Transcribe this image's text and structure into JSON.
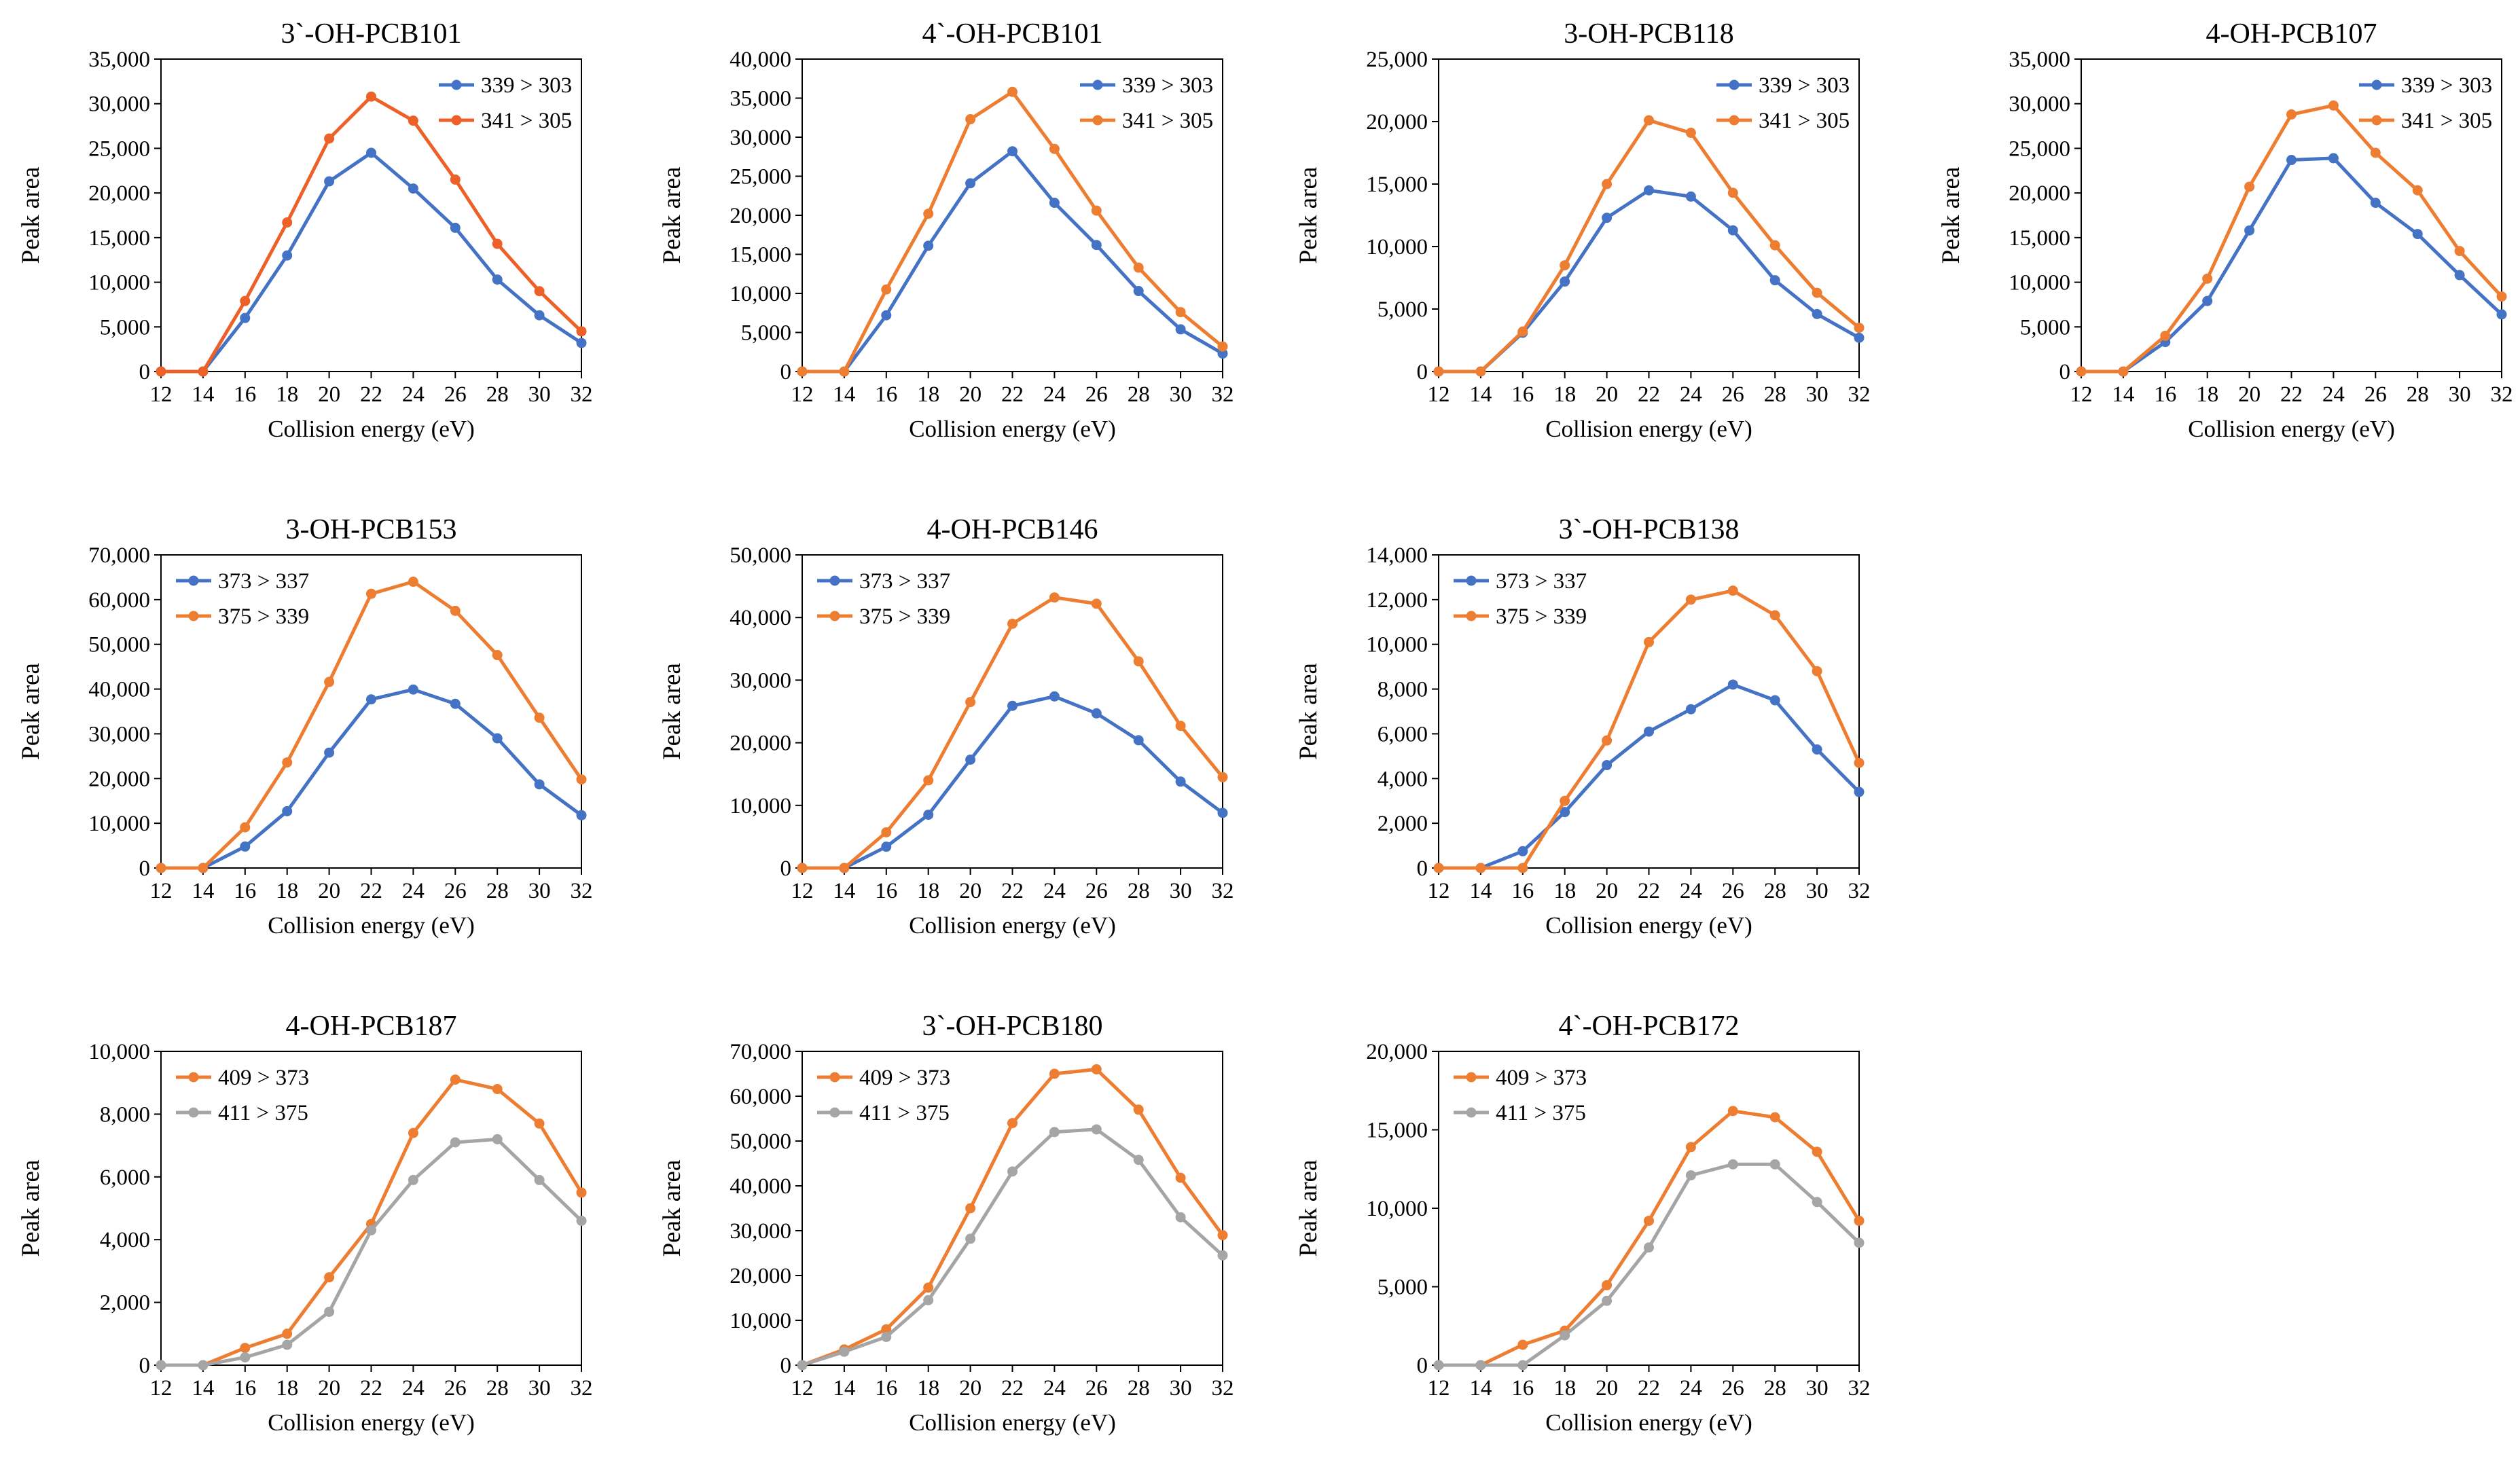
{
  "figure": {
    "chart_count": 10
  },
  "charts": [
    {
      "type": "line",
      "title": "3`-OH-PCB101",
      "xlabel": "Collision energy (eV)",
      "ylabel": "Peak area",
      "x": [
        12,
        14,
        16,
        18,
        20,
        22,
        24,
        26,
        28,
        30,
        32
      ],
      "ylim": [
        0,
        35000
      ],
      "yticks": [
        0,
        5000,
        10000,
        15000,
        20000,
        25000,
        30000,
        35000
      ],
      "ytick_labels": [
        "0",
        "5,000",
        "10,000",
        "15,000",
        "20,000",
        "25,000",
        "30,000",
        "35,000"
      ],
      "legend_position": "top-right",
      "series": [
        {
          "name": "339 > 303",
          "color": "#4472C4",
          "values": [
            0,
            0,
            6000,
            13000,
            21300,
            24500,
            20500,
            16100,
            10300,
            6300,
            3200
          ]
        },
        {
          "name": "341 > 305",
          "color": "#ED6128",
          "values": [
            0,
            0,
            7900,
            16700,
            26100,
            30800,
            28100,
            21500,
            14300,
            9000,
            4500
          ]
        }
      ]
    },
    {
      "type": "line",
      "title": "4`-OH-PCB101",
      "xlabel": "Collision energy (eV)",
      "ylabel": "Peak area",
      "x": [
        12,
        14,
        16,
        18,
        20,
        22,
        24,
        26,
        28,
        30,
        32
      ],
      "ylim": [
        0,
        40000
      ],
      "yticks": [
        0,
        5000,
        10000,
        15000,
        20000,
        25000,
        30000,
        35000,
        40000
      ],
      "ytick_labels": [
        "0",
        "5,000",
        "10,000",
        "15,000",
        "20,000",
        "25,000",
        "30,000",
        "35,000",
        "40,000"
      ],
      "legend_position": "top-right",
      "series": [
        {
          "name": "339 > 303",
          "color": "#4472C4",
          "values": [
            0,
            0,
            7200,
            16100,
            24100,
            28200,
            21600,
            16200,
            10300,
            5400,
            2300
          ]
        },
        {
          "name": "341 > 305",
          "color": "#ED7D31",
          "values": [
            0,
            0,
            10500,
            20200,
            32300,
            35800,
            28500,
            20600,
            13300,
            7600,
            3200
          ]
        }
      ]
    },
    {
      "type": "line",
      "title": "3-OH-PCB118",
      "xlabel": "Collision energy (eV)",
      "ylabel": "Peak area",
      "x": [
        12,
        14,
        16,
        18,
        20,
        22,
        24,
        26,
        28,
        30,
        32
      ],
      "ylim": [
        0,
        25000
      ],
      "yticks": [
        0,
        5000,
        10000,
        15000,
        20000,
        25000
      ],
      "ytick_labels": [
        "0",
        "5,000",
        "10,000",
        "15,000",
        "20,000",
        "25,000"
      ],
      "legend_position": "top-right",
      "series": [
        {
          "name": "339 > 303",
          "color": "#4472C4",
          "values": [
            0,
            0,
            3100,
            7200,
            12300,
            14500,
            14000,
            11300,
            7300,
            4600,
            2700
          ]
        },
        {
          "name": "341 > 305",
          "color": "#ED7D31",
          "values": [
            0,
            0,
            3200,
            8500,
            15000,
            20100,
            19100,
            14300,
            10100,
            6300,
            3500
          ]
        }
      ]
    },
    {
      "type": "line",
      "title": "4-OH-PCB107",
      "xlabel": "Collision energy (eV)",
      "ylabel": "Peak area",
      "x": [
        12,
        14,
        16,
        18,
        20,
        22,
        24,
        26,
        28,
        30,
        32
      ],
      "ylim": [
        0,
        35000
      ],
      "yticks": [
        0,
        5000,
        10000,
        15000,
        20000,
        25000,
        30000,
        35000
      ],
      "ytick_labels": [
        "0",
        "5,000",
        "10,000",
        "15,000",
        "20,000",
        "25,000",
        "30,000",
        "35,000"
      ],
      "legend_position": "top-right",
      "series": [
        {
          "name": "339 > 303",
          "color": "#4472C4",
          "values": [
            0,
            0,
            3300,
            7900,
            15800,
            23700,
            23900,
            18900,
            15400,
            10800,
            6400
          ]
        },
        {
          "name": "341 > 305",
          "color": "#ED7D31",
          "values": [
            0,
            0,
            4000,
            10400,
            20700,
            28800,
            29800,
            24500,
            20300,
            13500,
            8400
          ]
        }
      ]
    },
    {
      "type": "line",
      "title": "3-OH-PCB153",
      "xlabel": "Collision energy (eV)",
      "ylabel": "Peak area",
      "x": [
        12,
        14,
        16,
        18,
        20,
        22,
        24,
        26,
        28,
        30,
        32
      ],
      "ylim": [
        0,
        70000
      ],
      "yticks": [
        0,
        10000,
        20000,
        30000,
        40000,
        50000,
        60000,
        70000
      ],
      "ytick_labels": [
        "0",
        "10,000",
        "20,000",
        "30,000",
        "40,000",
        "50,000",
        "60,000",
        "70,000"
      ],
      "legend_position": "top-left",
      "series": [
        {
          "name": "373 > 337",
          "color": "#4472C4",
          "values": [
            0,
            0,
            4800,
            12700,
            25800,
            37700,
            39900,
            36700,
            29000,
            18700,
            11800
          ]
        },
        {
          "name": "375 > 339",
          "color": "#ED7D31",
          "values": [
            0,
            0,
            9100,
            23600,
            41600,
            61300,
            64000,
            57500,
            47600,
            33600,
            19800
          ]
        }
      ]
    },
    {
      "type": "line",
      "title": "4-OH-PCB146",
      "xlabel": "Collision energy (eV)",
      "ylabel": "Peak area",
      "x": [
        12,
        14,
        16,
        18,
        20,
        22,
        24,
        26,
        28,
        30,
        32
      ],
      "ylim": [
        0,
        50000
      ],
      "yticks": [
        0,
        10000,
        20000,
        30000,
        40000,
        50000
      ],
      "ytick_labels": [
        "0",
        "10,000",
        "20,000",
        "30,000",
        "40,000",
        "50,000"
      ],
      "legend_position": "top-left",
      "series": [
        {
          "name": "373 > 337",
          "color": "#4472C4",
          "values": [
            0,
            0,
            3400,
            8500,
            17300,
            25900,
            27400,
            24700,
            20400,
            13800,
            8800
          ]
        },
        {
          "name": "375 > 339",
          "color": "#ED7D31",
          "values": [
            0,
            0,
            5700,
            14000,
            26500,
            39000,
            43200,
            42200,
            33000,
            22700,
            14500
          ]
        }
      ]
    },
    {
      "type": "line",
      "title": "3`-OH-PCB138",
      "xlabel": "Collision energy (eV)",
      "ylabel": "Peak area",
      "x": [
        12,
        14,
        16,
        18,
        20,
        22,
        24,
        26,
        28,
        30,
        32
      ],
      "ylim": [
        0,
        14000
      ],
      "yticks": [
        0,
        2000,
        4000,
        6000,
        8000,
        10000,
        12000,
        14000
      ],
      "ytick_labels": [
        "0",
        "2,000",
        "4,000",
        "6,000",
        "8,000",
        "10,000",
        "12,000",
        "14,000"
      ],
      "legend_position": "top-left",
      "series": [
        {
          "name": "373 > 337",
          "color": "#4472C4",
          "values": [
            0,
            0,
            750,
            2500,
            4600,
            6100,
            7100,
            8200,
            7500,
            5300,
            3400
          ]
        },
        {
          "name": "375 > 339",
          "color": "#ED7D31",
          "values": [
            0,
            0,
            0,
            3000,
            5700,
            10100,
            12000,
            12400,
            11300,
            8800,
            4700
          ]
        }
      ]
    },
    {
      "type": "line",
      "title": "4-OH-PCB187",
      "xlabel": "Collision energy (eV)",
      "ylabel": "Peak area",
      "x": [
        12,
        14,
        16,
        18,
        20,
        22,
        24,
        26,
        28,
        30,
        32
      ],
      "ylim": [
        0,
        10000
      ],
      "yticks": [
        0,
        2000,
        4000,
        6000,
        8000,
        10000
      ],
      "ytick_labels": [
        "0",
        "2,000",
        "4,000",
        "6,000",
        "8,000",
        "10,000"
      ],
      "legend_position": "top-left",
      "series": [
        {
          "name": "409 > 373",
          "color": "#ED7D31",
          "values": [
            0,
            0,
            550,
            1000,
            2800,
            4500,
            7400,
            9100,
            8800,
            7700,
            5500
          ]
        },
        {
          "name": "411 > 375",
          "color": "#A5A5A5",
          "values": [
            0,
            0,
            250,
            650,
            1700,
            4300,
            5900,
            7100,
            7200,
            5900,
            4600
          ]
        }
      ]
    },
    {
      "type": "line",
      "title": "3`-OH-PCB180",
      "xlabel": "Collision energy (eV)",
      "ylabel": "Peak area",
      "x": [
        12,
        14,
        16,
        18,
        20,
        22,
        24,
        26,
        28,
        30,
        32
      ],
      "ylim": [
        0,
        70000
      ],
      "yticks": [
        0,
        10000,
        20000,
        30000,
        40000,
        50000,
        60000,
        70000
      ],
      "ytick_labels": [
        "0",
        "10,000",
        "20,000",
        "30,000",
        "40,000",
        "50,000",
        "60,000",
        "70,000"
      ],
      "legend_position": "top-left",
      "series": [
        {
          "name": "409 > 373",
          "color": "#ED7D31",
          "values": [
            0,
            3500,
            8000,
            17300,
            35000,
            54000,
            65000,
            66000,
            57000,
            41800,
            29000
          ]
        },
        {
          "name": "411 > 375",
          "color": "#A5A5A5",
          "values": [
            0,
            3000,
            6300,
            14500,
            28200,
            43200,
            52000,
            52600,
            45800,
            33000,
            24500
          ]
        }
      ]
    },
    {
      "type": "line",
      "title": "4`-OH-PCB172",
      "xlabel": "Collision energy (eV)",
      "ylabel": "Peak area",
      "x": [
        12,
        14,
        16,
        18,
        20,
        22,
        24,
        26,
        28,
        30,
        32
      ],
      "ylim": [
        0,
        20000
      ],
      "yticks": [
        0,
        5000,
        10000,
        15000,
        20000
      ],
      "ytick_labels": [
        "0",
        "5,000",
        "10,000",
        "15,000",
        "20,000"
      ],
      "legend_position": "top-left",
      "series": [
        {
          "name": "409 > 373",
          "color": "#ED7D31",
          "values": [
            0,
            0,
            1300,
            2200,
            5100,
            9200,
            13900,
            16200,
            15800,
            13600,
            9200
          ]
        },
        {
          "name": "411 > 375",
          "color": "#A5A5A5",
          "values": [
            0,
            0,
            0,
            1900,
            4100,
            7500,
            12100,
            12800,
            12800,
            10400,
            7800
          ]
        }
      ]
    }
  ]
}
